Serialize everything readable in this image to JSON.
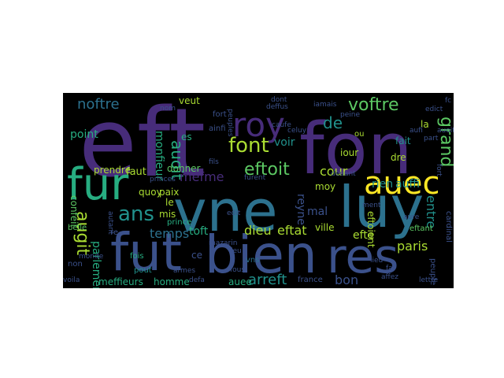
{
  "palette": [
    "#440154",
    "#472c7a",
    "#3b518b",
    "#2c718e",
    "#21918c",
    "#27ad81",
    "#5cc863",
    "#aadc32",
    "#fde725"
  ],
  "words": [
    {
      "text": "eft",
      "color": "#472c7a"
    },
    {
      "text": "fon",
      "color": "#472c7a"
    },
    {
      "text": "vne",
      "color": "#2c718e"
    },
    {
      "text": "luy",
      "color": "#2c718e"
    },
    {
      "text": "fut",
      "color": "#3b518b"
    },
    {
      "text": "bien",
      "color": "#3b518b"
    },
    {
      "text": "res",
      "color": "#3b518b"
    },
    {
      "text": "fur",
      "color": "#27ad81"
    },
    {
      "text": "roy",
      "color": "#472c7a"
    },
    {
      "text": "auec",
      "color": "#fde725"
    },
    {
      "text": "voftre",
      "color": "#5cc863"
    },
    {
      "text": "noftre",
      "color": "#2c718e"
    },
    {
      "text": "grand",
      "color": "#5cc863"
    },
    {
      "text": "font",
      "color": "#aadc32"
    },
    {
      "text": "eftoit",
      "color": "#5cc863"
    },
    {
      "text": "auoit",
      "color": "#27ad81"
    },
    {
      "text": "mefme",
      "color": "#472c7a"
    },
    {
      "text": "monfieur",
      "color": "#27ad81"
    },
    {
      "text": "ans",
      "color": "#21918c"
    },
    {
      "text": "augit",
      "color": "#aadc32"
    },
    {
      "text": "dieu",
      "color": "#aadc32"
    },
    {
      "text": "eftat",
      "color": "#aadc32"
    },
    {
      "text": "arreft",
      "color": "#21918c"
    },
    {
      "text": "paris",
      "color": "#aadc32"
    },
    {
      "text": "entre",
      "color": "#21918c"
    },
    {
      "text": "rien",
      "color": "#21918c"
    },
    {
      "text": "auffi",
      "color": "#21918c"
    },
    {
      "text": "reyne",
      "color": "#3b518b"
    },
    {
      "text": "de",
      "color": "#21918c"
    },
    {
      "text": "voir",
      "color": "#21918c"
    },
    {
      "text": "cour",
      "color": "#aadc32"
    },
    {
      "text": "temps",
      "color": "#2c718e"
    },
    {
      "text": "point",
      "color": "#27ad81"
    },
    {
      "text": "parlement",
      "color": "#27ad81"
    },
    {
      "text": "meffieurs",
      "color": "#27ad81"
    },
    {
      "text": "homme",
      "color": "#27ad81"
    },
    {
      "text": "bon",
      "color": "#3b518b"
    },
    {
      "text": "efte",
      "color": "#aadc32"
    },
    {
      "text": "mal",
      "color": "#3b518b"
    },
    {
      "text": "toft",
      "color": "#27ad81"
    },
    {
      "text": "faut",
      "color": "#aadc32"
    },
    {
      "text": "veut",
      "color": "#aadc32"
    },
    {
      "text": "quoy",
      "color": "#aadc32"
    },
    {
      "text": "paix",
      "color": "#aadc32"
    },
    {
      "text": "mis",
      "color": "#aadc32"
    },
    {
      "text": "le",
      "color": "#aadc32"
    },
    {
      "text": "ville",
      "color": "#aadc32"
    },
    {
      "text": "iour",
      "color": "#aadc32"
    },
    {
      "text": "eftoient",
      "color": "#aadc32"
    },
    {
      "text": "donner",
      "color": "#5cc863"
    },
    {
      "text": "prendre",
      "color": "#aadc32"
    },
    {
      "text": "confeil",
      "color": "#5cc863"
    },
    {
      "text": "auee",
      "color": "#27ad81"
    },
    {
      "text": "france",
      "color": "#3b518b"
    },
    {
      "text": "eftant",
      "color": "#5cc863"
    },
    {
      "text": "fait",
      "color": "#21918c"
    },
    {
      "text": "la",
      "color": "#aadc32"
    },
    {
      "text": "dre",
      "color": "#aadc32"
    },
    {
      "text": "belle",
      "color": "#5cc863"
    },
    {
      "text": "prince",
      "color": "#27ad81"
    },
    {
      "text": "fois",
      "color": "#27ad81"
    },
    {
      "text": "pout",
      "color": "#21918c"
    },
    {
      "text": "non",
      "color": "#3b518b"
    },
    {
      "text": "vns",
      "color": "#2c718e"
    },
    {
      "text": "moy",
      "color": "#aadc32"
    },
    {
      "text": "ce",
      "color": "#3b518b"
    },
    {
      "text": "peuple",
      "color": "#3b518b"
    },
    {
      "text": "cardinal",
      "color": "#3b518b"
    },
    {
      "text": "lettre",
      "color": "#3b518b"
    },
    {
      "text": "affez",
      "color": "#3b518b"
    },
    {
      "text": "ou",
      "color": "#aadc32"
    },
    {
      "text": "es",
      "color": "#27ad81"
    },
    {
      "text": "fort",
      "color": "#3b518b"
    },
    {
      "text": "ainfi",
      "color": "#3b518b"
    },
    {
      "text": "peuples",
      "color": "#3b518b"
    },
    {
      "text": "iamais",
      "color": "#3b518b"
    },
    {
      "text": "deffus",
      "color": "#3b518b"
    },
    {
      "text": "furent",
      "color": "#3b518b"
    },
    {
      "text": "peine",
      "color": "#3b518b"
    },
    {
      "text": "edit",
      "color": "#3b518b"
    },
    {
      "text": "aduis",
      "color": "#3b518b"
    },
    {
      "text": "mazarin",
      "color": "#3b518b"
    },
    {
      "text": "armes",
      "color": "#3b518b"
    },
    {
      "text": "leu",
      "color": "#3b518b"
    },
    {
      "text": "fous",
      "color": "#3b518b"
    },
    {
      "text": "caufe",
      "color": "#3b518b"
    },
    {
      "text": "celuy",
      "color": "#3b518b"
    },
    {
      "text": "monde",
      "color": "#3b518b"
    },
    {
      "text": "ment",
      "color": "#3b518b"
    },
    {
      "text": "deuant",
      "color": "#3b518b"
    },
    {
      "text": "fai",
      "color": "#3b518b"
    },
    {
      "text": "aure",
      "color": "#3b518b"
    },
    {
      "text": "re",
      "color": "#3b518b"
    },
    {
      "text": "nom",
      "color": "#3b518b"
    },
    {
      "text": "defa",
      "color": "#3b518b"
    },
    {
      "text": "autant",
      "color": "#3b518b"
    },
    {
      "text": "fils",
      "color": "#3b518b"
    },
    {
      "text": "princes",
      "color": "#3b518b"
    },
    {
      "text": "dont",
      "color": "#3b518b"
    },
    {
      "text": "fc",
      "color": "#3b518b"
    },
    {
      "text": "fort",
      "color": "#3b518b"
    },
    {
      "text": "auoit",
      "color": "#3b518b"
    },
    {
      "text": "aufi",
      "color": "#3b518b"
    },
    {
      "text": "voila",
      "color": "#3b518b"
    },
    {
      "text": "part",
      "color": "#3b518b"
    },
    {
      "text": "edict",
      "color": "#3b518b"
    },
    {
      "text": "lieu",
      "color": "#3b518b"
    }
  ]
}
